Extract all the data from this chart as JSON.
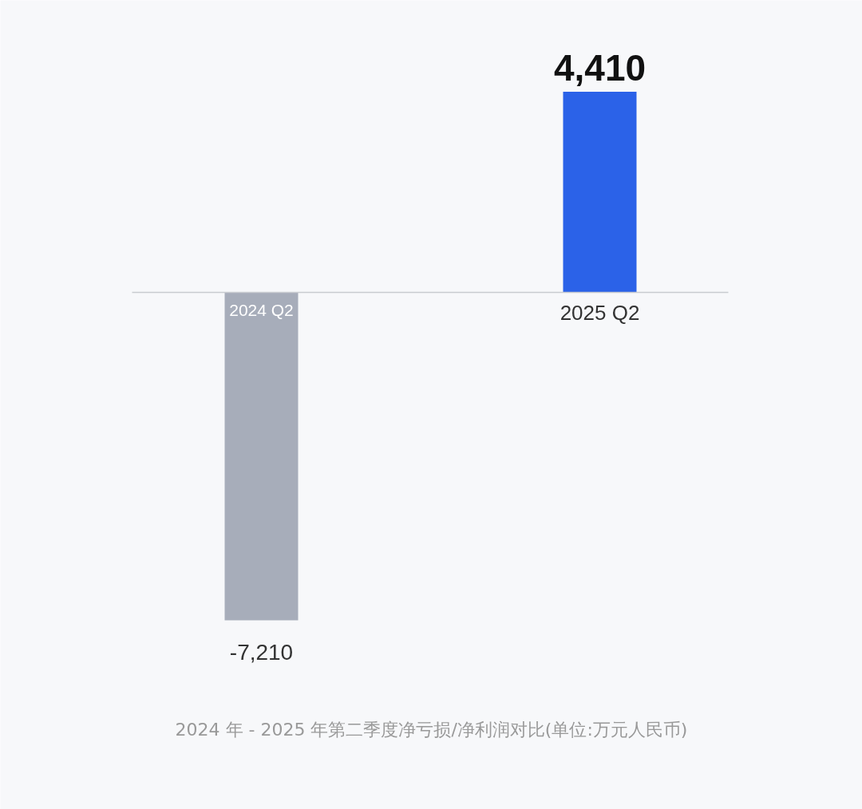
{
  "chart_data": {
    "type": "bar",
    "title": "2024 年 - 2025 年第二季度净亏损/净利润对比(单位:万元人民币)",
    "categories": [
      "2024 Q2",
      "2025 Q2"
    ],
    "values": [
      -7210,
      4410
    ],
    "colors": [
      "#a7adba",
      "#2b62e8"
    ],
    "value_labels": [
      "-7,210",
      "4,410"
    ],
    "grid": false
  }
}
